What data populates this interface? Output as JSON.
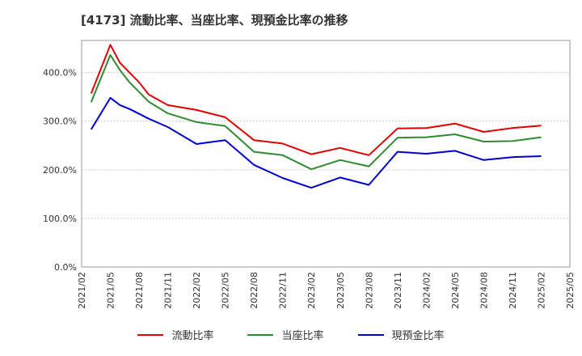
{
  "chart_data": {
    "type": "line",
    "title": "[4173]  流動比率、当座比率、現預金比率の推移",
    "xlabel": "",
    "ylabel": "",
    "ylim": [
      0,
      466
    ],
    "yticks": [
      0,
      100,
      200,
      300,
      400
    ],
    "ytick_labels": [
      "0.0%",
      "100.0%",
      "200.0%",
      "300.0%",
      "400.0%"
    ],
    "xticks": [
      "2021/02",
      "2021/05",
      "2021/08",
      "2021/11",
      "2022/02",
      "2022/05",
      "2022/08",
      "2022/11",
      "2023/02",
      "2023/05",
      "2023/08",
      "2023/11",
      "2024/02",
      "2024/05",
      "2024/08",
      "2024/11",
      "2025/02",
      "2025/05"
    ],
    "x": [
      "2021/03",
      "2021/05",
      "2021/06",
      "2021/07",
      "2021/08",
      "2021/09",
      "2021/11",
      "2022/02",
      "2022/05",
      "2022/08",
      "2022/11",
      "2023/02",
      "2023/05",
      "2023/08",
      "2023/11",
      "2024/02",
      "2024/05",
      "2024/08",
      "2024/11",
      "2025/02"
    ],
    "series": [
      {
        "name": "流動比率",
        "color": "#e00000",
        "values": [
          357,
          457,
          420,
          400,
          380,
          355,
          333,
          323,
          308,
          261,
          254,
          232,
          245,
          230,
          285,
          286,
          295,
          278,
          286,
          291
        ]
      },
      {
        "name": "当座比率",
        "color": "#2e8b2e",
        "values": [
          339,
          436,
          405,
          380,
          360,
          340,
          316,
          298,
          290,
          237,
          230,
          201,
          220,
          207,
          266,
          267,
          273,
          258,
          259,
          267
        ]
      },
      {
        "name": "現預金比率",
        "color": "#0000cc",
        "values": [
          283,
          348,
          333,
          325,
          315,
          305,
          288,
          253,
          261,
          210,
          183,
          163,
          184,
          169,
          237,
          233,
          239,
          220,
          226,
          228
        ]
      }
    ]
  }
}
